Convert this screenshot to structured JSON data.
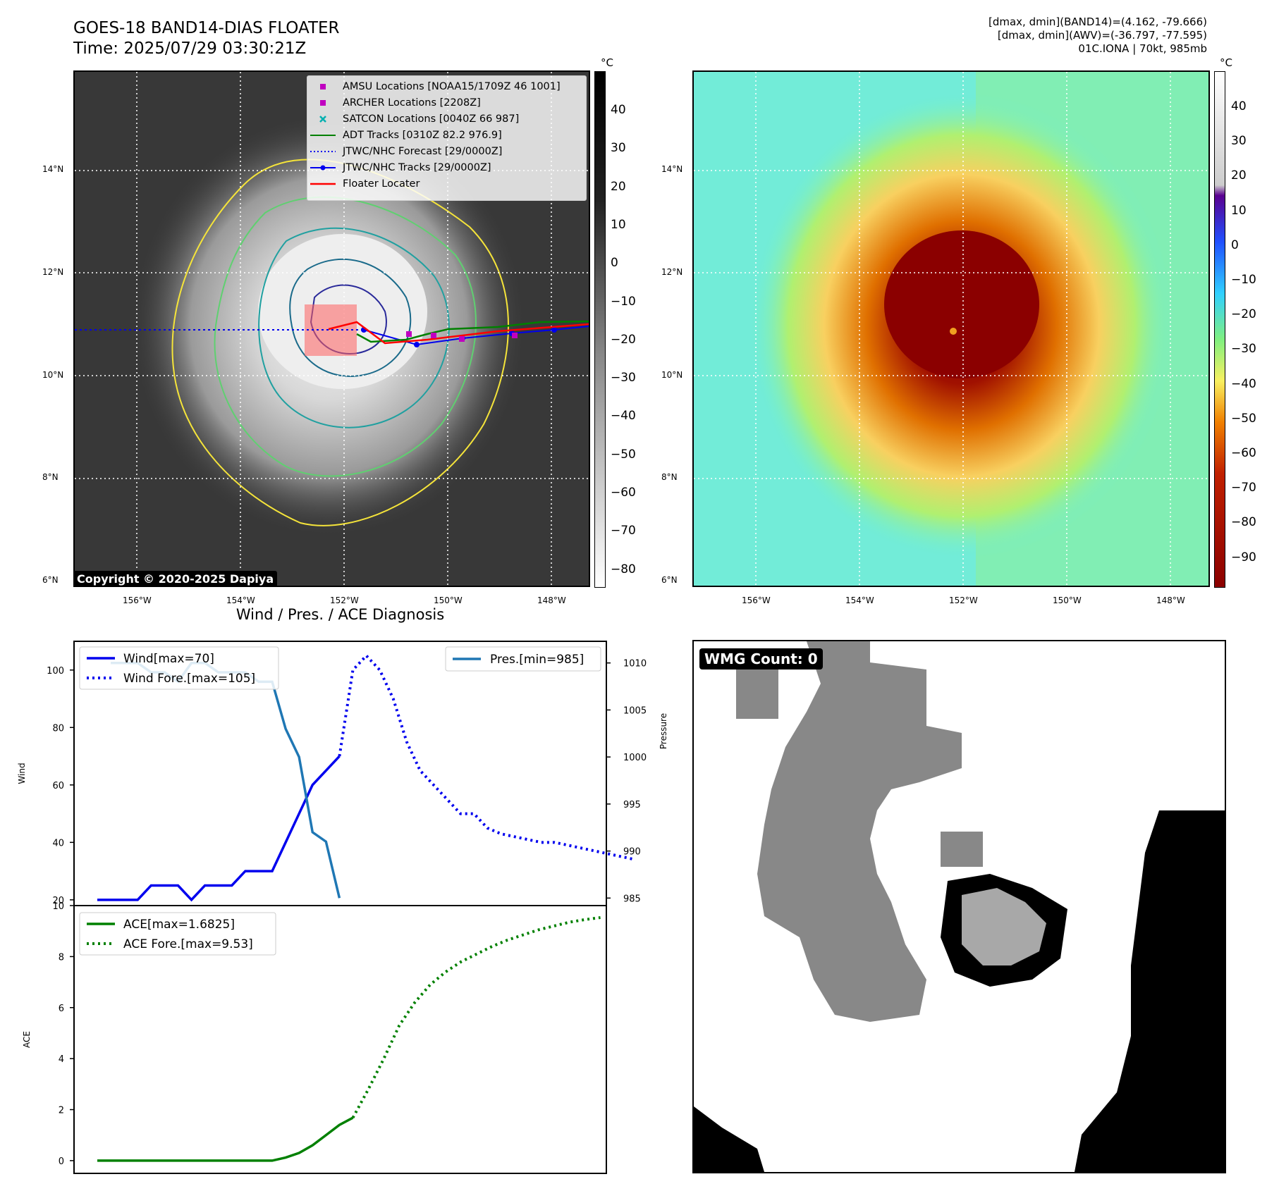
{
  "header": {
    "title_line1": "GOES-18 BAND14-DIAS FLOATER",
    "title_line2": "Time: 2025/07/29 03:30:21Z",
    "info_line1": "[dmax, dmin](BAND14)=(4.162, -79.666)",
    "info_line2": "[dmax, dmin](AWV)=(-36.797, -77.595)",
    "info_line3": "01C.IONA | 70kt, 985mb"
  },
  "map_axes": {
    "lat_labels": [
      "14°N",
      "12°N",
      "10°N",
      "8°N",
      "6°N"
    ],
    "lon_labels": [
      "156°W",
      "154°W",
      "152°W",
      "150°W",
      "148°W"
    ]
  },
  "colorbar_left": {
    "unit": "°C",
    "ticks": [
      "40",
      "30",
      "20",
      "10",
      "0",
      "−10",
      "−20",
      "−30",
      "−40",
      "−50",
      "−60",
      "−70",
      "−80"
    ]
  },
  "colorbar_right": {
    "unit": "°C",
    "ticks": [
      "40",
      "30",
      "20",
      "10",
      "0",
      "−10",
      "−20",
      "−30",
      "−40",
      "−50",
      "−60",
      "−70",
      "−80",
      "−90"
    ]
  },
  "legend_ir": {
    "amsu": "AMSU Locations [NOAA15/1709Z 46 1001]",
    "archer": "ARCHER Locations [2208Z]",
    "satcon": "SATCON Locations [0040Z 66 987]",
    "adt": "ADT Tracks [0310Z 82.2 976.9]",
    "forecast": "JTWC/NHC Forecast [29/0000Z]",
    "tracks": "JTWC/NHC Tracks [29/0000Z]",
    "floater": "Floater Locater"
  },
  "copyright": "Copyright © 2020-2025 Dapiya",
  "wmg_label": "WMG Count: 0",
  "colors": {
    "wind": "#0000ee",
    "pressure": "#1f77b4",
    "ace": "#008000",
    "adt": "#008000",
    "floater": "#ff0000",
    "archer": "#c000c0",
    "satcon": "#00b0b0"
  },
  "chart_data": [
    {
      "type": "line",
      "title": "Wind / Pres. / ACE Diagnosis",
      "ylabel": "Wind",
      "ylabel_right": "Pressure",
      "ylim": [
        18,
        110
      ],
      "ylim_right": [
        984.2,
        1012.3
      ],
      "yticks": [
        20,
        40,
        60,
        80,
        100
      ],
      "yticks_right": [
        985,
        990,
        995,
        1000,
        1005,
        1010
      ],
      "series": [
        {
          "name": "Wind[max=70]",
          "axis": "left",
          "style": "solid",
          "values": [
            20,
            20,
            20,
            20,
            25,
            25,
            25,
            20,
            25,
            25,
            25,
            30,
            30,
            30,
            40,
            50,
            60,
            65,
            70
          ]
        },
        {
          "name": "Wind Fore.[max=105]",
          "axis": "left",
          "style": "dotted",
          "values": [
            70,
            100,
            105,
            100,
            90,
            75,
            65,
            60,
            55,
            50,
            50,
            45,
            43,
            42,
            41,
            40,
            40,
            39,
            38,
            37,
            36,
            35,
            34
          ]
        },
        {
          "name": "Pres.[min=985]",
          "axis": "right",
          "style": "solid",
          "values": [
            1010,
            1010,
            1010,
            1009,
            1009,
            1008,
            1010,
            1010,
            1009,
            1009,
            1009,
            1008,
            1008,
            1003,
            1000,
            992,
            991,
            985
          ]
        }
      ]
    },
    {
      "type": "line",
      "ylabel": "ACE",
      "ylim": [
        -0.5,
        10
      ],
      "yticks": [
        0,
        2,
        4,
        6,
        8,
        10
      ],
      "series": [
        {
          "name": "ACE[max=1.6825]",
          "style": "solid",
          "values": [
            0,
            0,
            0,
            0,
            0,
            0,
            0,
            0,
            0,
            0,
            0,
            0,
            0,
            0,
            0.12,
            0.3,
            0.6,
            1.0,
            1.4,
            1.68
          ]
        },
        {
          "name": "ACE Fore.[max=9.53]",
          "style": "dotted",
          "values": [
            1.68,
            2.8,
            4.0,
            5.3,
            6.2,
            6.9,
            7.4,
            7.8,
            8.1,
            8.4,
            8.65,
            8.85,
            9.05,
            9.2,
            9.35,
            9.45,
            9.53
          ]
        }
      ]
    }
  ]
}
